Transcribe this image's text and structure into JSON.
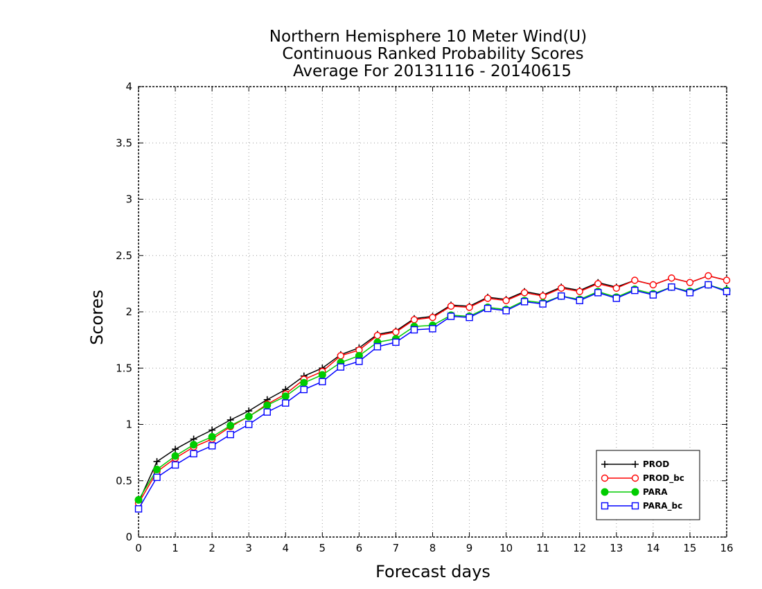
{
  "chart_data": {
    "type": "line",
    "title": [
      "Northern Hemisphere 10 Meter Wind(U)",
      "Continuous Ranked Probability Scores",
      "Average For 20131116 - 20140615"
    ],
    "xlabel": "Forecast days",
    "ylabel": "Scores",
    "xlim": [
      0,
      16
    ],
    "ylim": [
      0,
      4
    ],
    "xticks": [
      "0",
      "1",
      "2",
      "3",
      "4",
      "5",
      "6",
      "7",
      "8",
      "9",
      "10",
      "11",
      "12",
      "13",
      "14",
      "15",
      "16"
    ],
    "yticks": [
      "0",
      "0.5",
      "1",
      "1.5",
      "2",
      "2.5",
      "3",
      "3.5",
      "4"
    ],
    "grid": true,
    "legend_position": "bottom-right",
    "x": [
      0,
      0.5,
      1,
      1.5,
      2,
      2.5,
      3,
      3.5,
      4,
      4.5,
      5,
      5.5,
      6,
      6.5,
      7,
      7.5,
      8,
      8.5,
      9,
      9.5,
      10,
      10.5,
      11,
      11.5,
      12,
      12.5,
      13,
      13.5,
      14,
      14.5,
      15,
      15.5,
      16
    ],
    "series": [
      {
        "name": "PROD",
        "color": "#000000",
        "marker": "plus",
        "values": [
          0.31,
          0.67,
          0.78,
          0.87,
          0.95,
          1.04,
          1.12,
          1.22,
          1.31,
          1.43,
          1.5,
          1.62,
          1.68,
          1.8,
          1.83,
          1.94,
          1.96,
          2.06,
          2.05,
          2.13,
          2.11,
          2.18,
          2.15,
          2.22,
          2.19,
          2.26,
          2.22,
          2.28,
          2.24,
          2.3,
          2.26,
          2.32,
          2.28
        ]
      },
      {
        "name": "PROD_bc",
        "color": "#ff0000",
        "marker": "circle-open",
        "values": [
          0.3,
          0.58,
          0.7,
          0.8,
          0.87,
          0.98,
          1.07,
          1.18,
          1.27,
          1.4,
          1.47,
          1.61,
          1.66,
          1.79,
          1.82,
          1.93,
          1.95,
          2.05,
          2.04,
          2.12,
          2.1,
          2.17,
          2.14,
          2.21,
          2.18,
          2.25,
          2.21,
          2.28,
          2.24,
          2.3,
          2.26,
          2.32,
          2.28
        ]
      },
      {
        "name": "PARA",
        "color": "#00cc00",
        "marker": "circle-filled",
        "values": [
          0.33,
          0.6,
          0.72,
          0.82,
          0.89,
          0.99,
          1.07,
          1.17,
          1.25,
          1.37,
          1.44,
          1.55,
          1.61,
          1.73,
          1.76,
          1.87,
          1.88,
          1.97,
          1.96,
          2.04,
          2.02,
          2.1,
          2.08,
          2.14,
          2.11,
          2.18,
          2.13,
          2.2,
          2.16,
          2.22,
          2.18,
          2.24,
          2.19
        ]
      },
      {
        "name": "PARA_bc",
        "color": "#0000ff",
        "marker": "square-open",
        "values": [
          0.25,
          0.53,
          0.64,
          0.74,
          0.81,
          0.91,
          1.0,
          1.11,
          1.19,
          1.31,
          1.38,
          1.51,
          1.56,
          1.69,
          1.73,
          1.84,
          1.85,
          1.96,
          1.95,
          2.03,
          2.01,
          2.09,
          2.07,
          2.14,
          2.1,
          2.17,
          2.12,
          2.19,
          2.15,
          2.22,
          2.17,
          2.24,
          2.18
        ]
      }
    ]
  }
}
